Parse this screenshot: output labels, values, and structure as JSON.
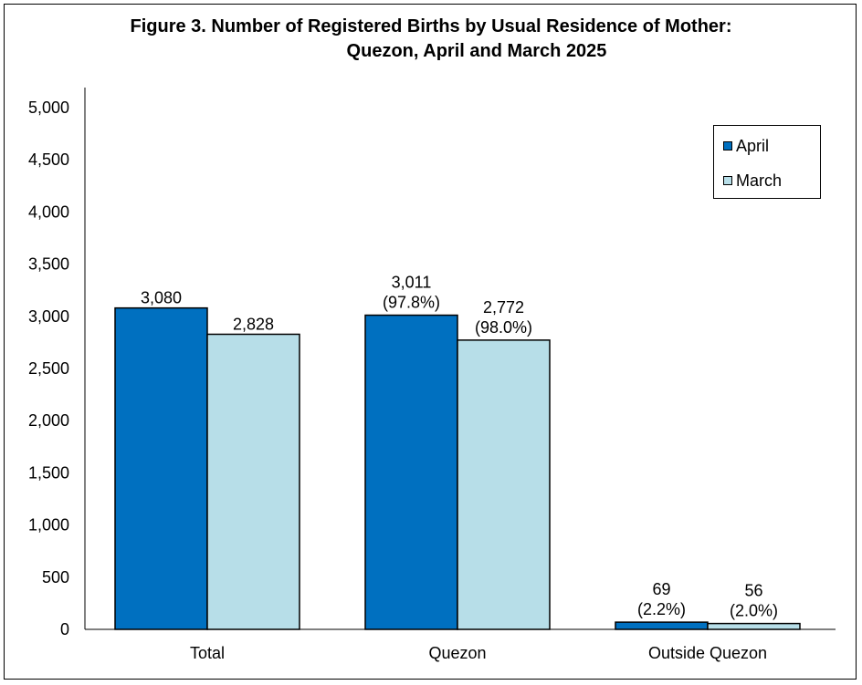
{
  "chart_data": {
    "type": "bar",
    "title_line1": "Figure 3. Number of Registered Births  by Usual Residence of Mother:",
    "title_line2": "Quezon, April and March 2025",
    "categories": [
      "Total",
      "Quezon",
      "Outside Quezon"
    ],
    "series": [
      {
        "name": "April",
        "color": "#0070C0",
        "values": [
          3080,
          3011,
          69
        ],
        "labels": [
          "3,080",
          "3,011",
          "69"
        ],
        "sublabels": [
          "",
          "(97.8%)",
          "(2.2%)"
        ]
      },
      {
        "name": "March",
        "color": "#B7DEE8",
        "values": [
          2828,
          2772,
          56
        ],
        "labels": [
          "2,828",
          "2,772",
          "56"
        ],
        "sublabels": [
          "",
          "(98.0%)",
          "(2.0%)"
        ]
      }
    ],
    "ylim": [
      0,
      5000
    ],
    "yticks": [
      "0",
      "500",
      "1,000",
      "1,500",
      "2,000",
      "2,500",
      "3,000",
      "3,500",
      "4,000",
      "4,500",
      "5,000"
    ],
    "xlabel": "",
    "ylabel": "",
    "grid": false,
    "legend_position": "top-right"
  }
}
